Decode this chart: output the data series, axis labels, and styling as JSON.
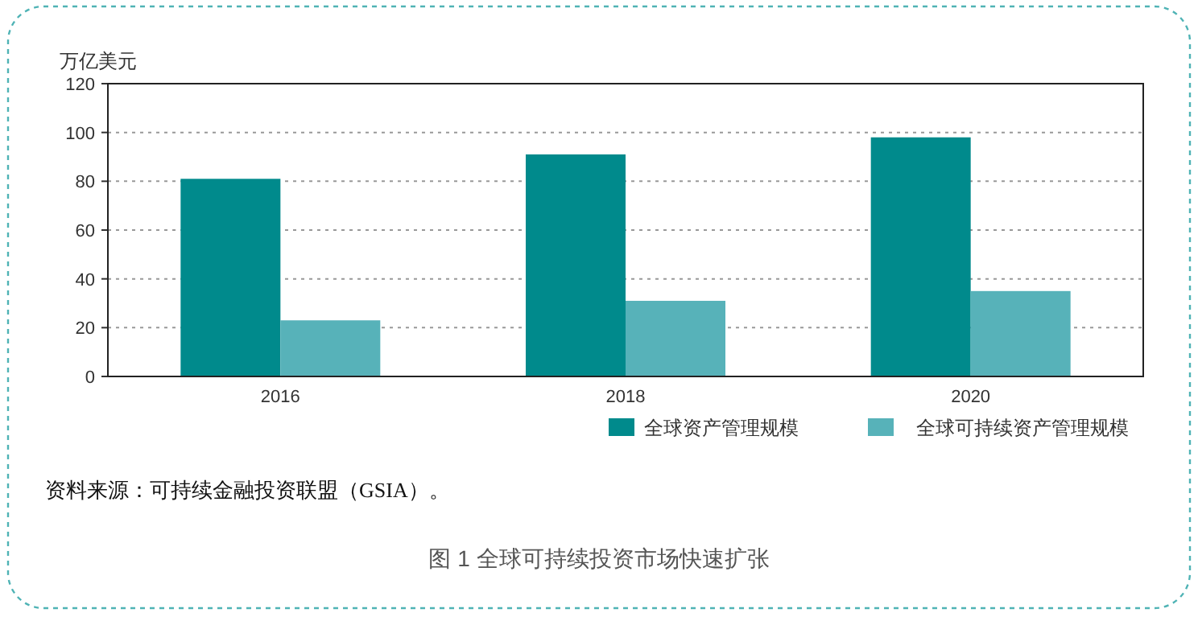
{
  "chart_data": {
    "type": "bar",
    "title": "图 1   全球可持续投资市场快速扩张",
    "ylabel": "万亿美元",
    "categories": [
      "2016",
      "2018",
      "2020"
    ],
    "series": [
      {
        "name": "全球资产管理规模",
        "color": "#008a8c",
        "values": [
          81,
          91,
          98
        ]
      },
      {
        "name": "全球可持续资产管理规模",
        "color": "#57b2b9",
        "values": [
          23,
          31,
          35
        ]
      }
    ],
    "ylim": [
      0,
      120
    ],
    "yticks": [
      0,
      20,
      40,
      60,
      80,
      100,
      120
    ],
    "grid": "y",
    "legend": "bottom right",
    "annotations": [
      "资料来源：可持续金融投资联盟（GSIA）。"
    ]
  }
}
